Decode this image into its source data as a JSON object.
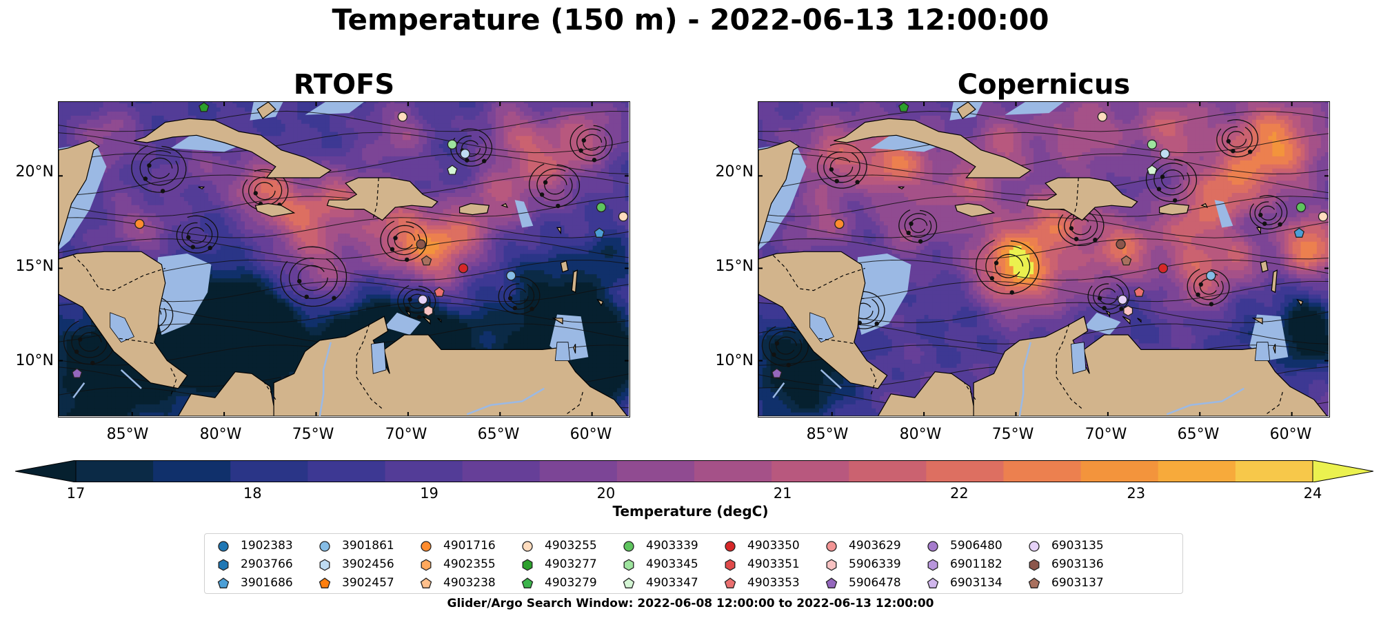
{
  "suptitle": "Temperature (150 m) - 2022-06-13 12:00:00",
  "panels": [
    {
      "title": "RTOFS"
    },
    {
      "title": "Copernicus"
    }
  ],
  "axes": {
    "lat_ticks": [
      "20°N",
      "15°N",
      "10°N"
    ],
    "lon_ticks": [
      "85°W",
      "80°W",
      "75°W",
      "70°W",
      "65°W",
      "60°W"
    ]
  },
  "chart_data": {
    "type": "heatmap",
    "title": "Temperature (150 m) - 2022-06-13 12:00:00",
    "panels": [
      "RTOFS",
      "Copernicus"
    ],
    "lon_range": [
      -89,
      -58
    ],
    "lat_range": [
      7,
      24
    ],
    "lat_ticks": [
      20,
      15,
      10
    ],
    "lon_ticks": [
      -85,
      -80,
      -75,
      -70,
      -65,
      -60
    ],
    "colorbar": {
      "label": "Temperature (degC)",
      "range": [
        17,
        24
      ],
      "ticks": [
        "17",
        "18",
        "19",
        "20",
        "21",
        "22",
        "23",
        "24"
      ],
      "levels": [
        17,
        17.5,
        18,
        18.5,
        19,
        19.5,
        20,
        20.5,
        21,
        21.5,
        22,
        22.5,
        23,
        23.5,
        24
      ],
      "colors": [
        "#0b2a46",
        "#10306b",
        "#2a3587",
        "#3d3893",
        "#533c97",
        "#663f98",
        "#7c4596",
        "#904b91",
        "#a55188",
        "#b8587e",
        "#cb6270",
        "#dd6f61",
        "#ec804f",
        "#f3943c",
        "#f7aa3b",
        "#f7c84a"
      ],
      "extend": "both",
      "under_color": "#06202f",
      "over_color": "#ebf14f"
    },
    "platforms": [
      {
        "id": "1902383",
        "color": "#1f77b4",
        "marker": "circle"
      },
      {
        "id": "2903766",
        "color": "#1f77b4",
        "marker": "hexagon"
      },
      {
        "id": "3901686",
        "color": "#4c9fd6",
        "marker": "pentagon"
      },
      {
        "id": "3901861",
        "color": "#86bde6",
        "marker": "circle"
      },
      {
        "id": "3902456",
        "color": "#bfdcf2",
        "marker": "hexagon"
      },
      {
        "id": "3902457",
        "color": "#ff7f0e",
        "marker": "pentagon"
      },
      {
        "id": "4901716",
        "color": "#ff8c2e",
        "marker": "circle"
      },
      {
        "id": "4902355",
        "color": "#ffa95e",
        "marker": "hexagon"
      },
      {
        "id": "4903238",
        "color": "#ffc08c",
        "marker": "pentagon"
      },
      {
        "id": "4903255",
        "color": "#ffdcbe",
        "marker": "circle"
      },
      {
        "id": "4903277",
        "color": "#2ca02c",
        "marker": "hexagon"
      },
      {
        "id": "4903279",
        "color": "#3cb44b",
        "marker": "pentagon"
      },
      {
        "id": "4903339",
        "color": "#5ec45e",
        "marker": "circle"
      },
      {
        "id": "4903345",
        "color": "#9ee49e",
        "marker": "hexagon"
      },
      {
        "id": "4903347",
        "color": "#d4f5d4",
        "marker": "pentagon"
      },
      {
        "id": "4903350",
        "color": "#d62728",
        "marker": "circle"
      },
      {
        "id": "4903351",
        "color": "#e04a4a",
        "marker": "hexagon"
      },
      {
        "id": "4903353",
        "color": "#ea6f6f",
        "marker": "pentagon"
      },
      {
        "id": "4903629",
        "color": "#f29494",
        "marker": "circle"
      },
      {
        "id": "5906339",
        "color": "#f8c2c2",
        "marker": "hexagon"
      },
      {
        "id": "5906478",
        "color": "#9467bd",
        "marker": "pentagon"
      },
      {
        "id": "5906480",
        "color": "#a57bcc",
        "marker": "circle"
      },
      {
        "id": "6901182",
        "color": "#b896dc",
        "marker": "hexagon"
      },
      {
        "id": "6903134",
        "color": "#d0b6ec",
        "marker": "pentagon"
      },
      {
        "id": "6903135",
        "color": "#e6d2f8",
        "marker": "circle"
      },
      {
        "id": "6903136",
        "color": "#8c564b",
        "marker": "hexagon"
      },
      {
        "id": "6903137",
        "color": "#a9705e",
        "marker": "pentagon"
      }
    ]
  },
  "search_window": "Glider/Argo Search Window: 2022-06-08 12:00:00 to 2022-06-13 12:00:00"
}
